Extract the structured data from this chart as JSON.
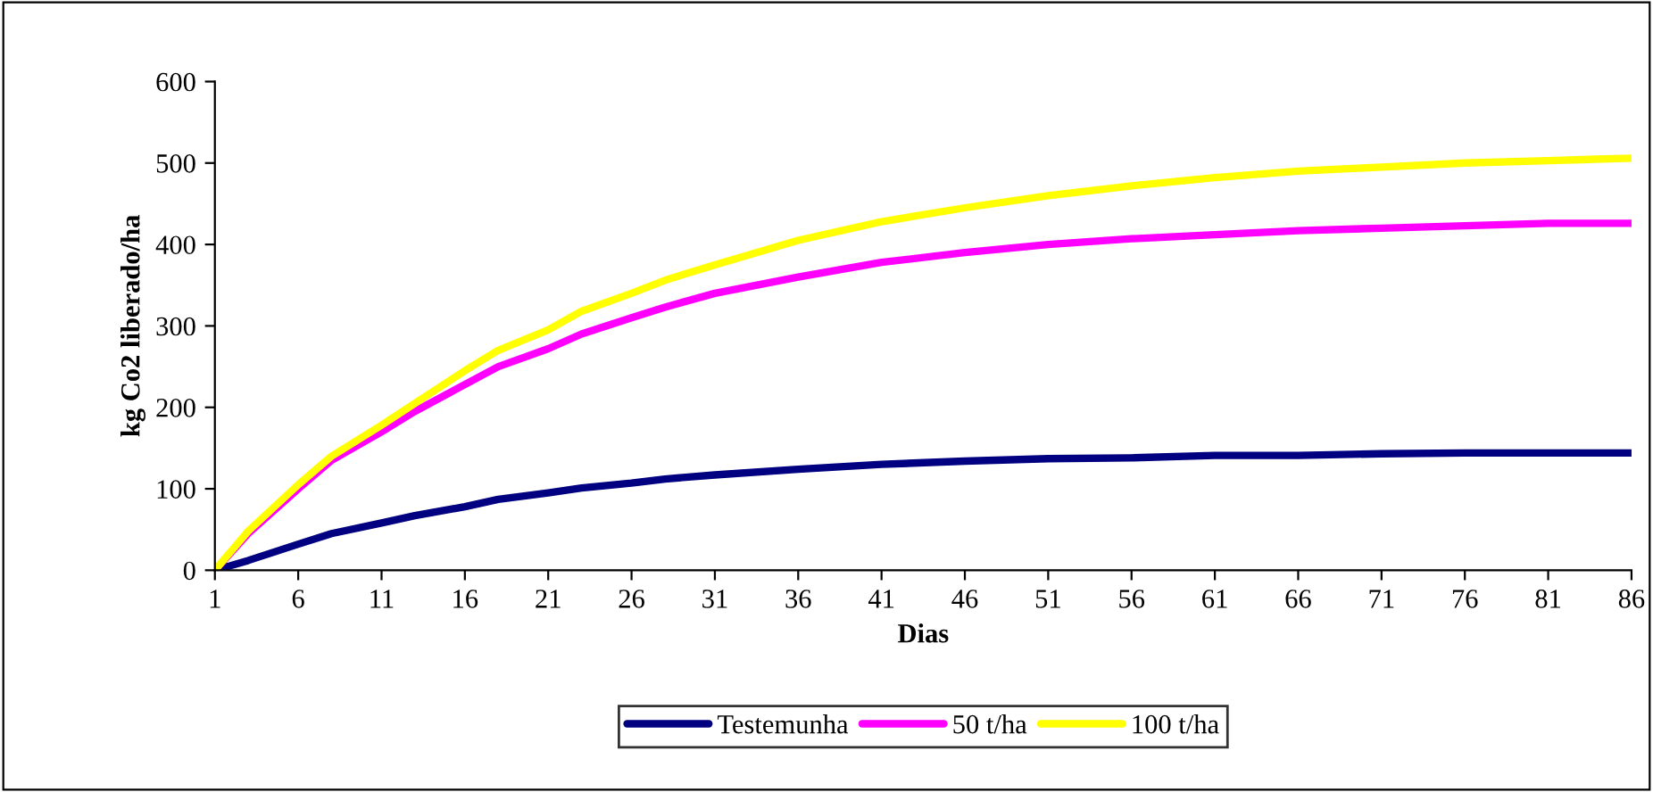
{
  "chart_data": {
    "type": "line",
    "xlabel": "Dias",
    "ylabel": "kg Co2 liberado/ha",
    "x": [
      1,
      3,
      6,
      8,
      11,
      13,
      16,
      18,
      21,
      23,
      26,
      28,
      31,
      36,
      41,
      46,
      51,
      56,
      61,
      66,
      71,
      76,
      81,
      86
    ],
    "series": [
      {
        "name": "Testemunha",
        "color": "#000080",
        "values": [
          0,
          12,
          32,
          45,
          58,
          67,
          78,
          87,
          95,
          101,
          107,
          112,
          117,
          124,
          130,
          134,
          137,
          138,
          141,
          141,
          143,
          144,
          144,
          144
        ]
      },
      {
        "name": "50 t/ha",
        "color": "#ff00ff",
        "values": [
          0,
          45,
          100,
          135,
          170,
          195,
          228,
          250,
          272,
          290,
          310,
          323,
          340,
          360,
          378,
          390,
          400,
          407,
          412,
          417,
          420,
          423,
          426,
          426
        ]
      },
      {
        "name": "100 t/ha",
        "color": "#ffff00",
        "values": [
          0,
          48,
          105,
          140,
          178,
          205,
          245,
          270,
          295,
          318,
          340,
          356,
          375,
          405,
          428,
          445,
          460,
          472,
          482,
          490,
          495,
          500,
          503,
          506
        ]
      }
    ],
    "xlim": [
      1,
      86
    ],
    "xticks": [
      1,
      6,
      11,
      16,
      21,
      26,
      31,
      36,
      41,
      46,
      51,
      56,
      61,
      66,
      71,
      76,
      81,
      86
    ],
    "ylim": [
      0,
      600
    ],
    "yticks": [
      0,
      100,
      200,
      300,
      400,
      500,
      600
    ],
    "grid": false,
    "legend": "bottom",
    "marker": "none",
    "line_style": "solid"
  }
}
